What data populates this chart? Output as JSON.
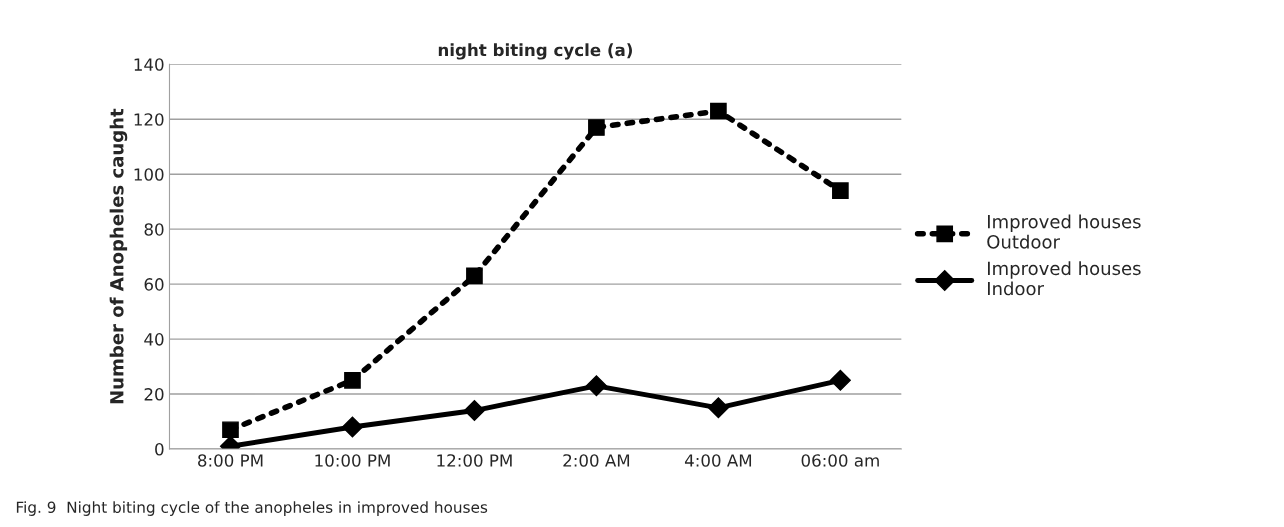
{
  "chart_data": {
    "type": "line",
    "title": "night biting cycle (a)",
    "ylabel": "Number of Anopheles caught",
    "categories": [
      "8:00 PM",
      "10:00 PM",
      "12:00 PM",
      "2:00 AM",
      "4:00 AM",
      "06:00 am"
    ],
    "series": [
      {
        "name": "Improved houses Outdoor",
        "color": "#000000",
        "marker": "square",
        "line_style": "dotted",
        "values": [
          7,
          25,
          63,
          117,
          123,
          94
        ]
      },
      {
        "name": "Improved houses Indoor",
        "color": "#000000",
        "marker": "diamond",
        "line_style": "solid",
        "values": [
          1,
          8,
          14,
          23,
          15,
          25
        ]
      }
    ],
    "ylim": [
      0,
      140
    ],
    "yticks": [
      0,
      20,
      40,
      60,
      80,
      100,
      120,
      140
    ],
    "grid": "y",
    "legend": "right",
    "annotations": [
      "Fig. 9  Night biting cycle of the anopheles in improved houses"
    ]
  }
}
